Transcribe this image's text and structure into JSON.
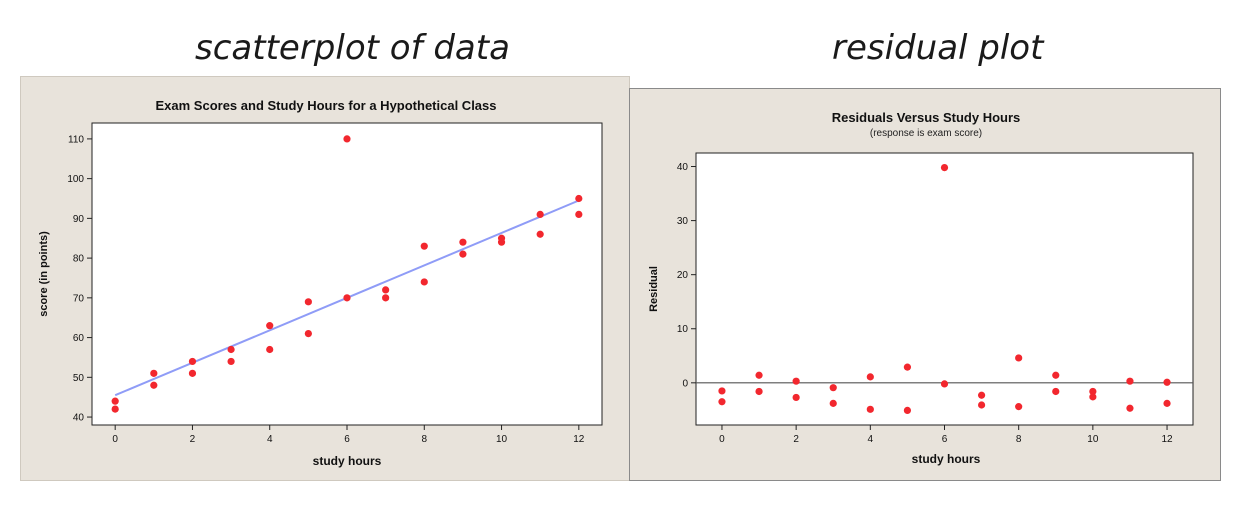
{
  "headings": {
    "left": "scatterplot of data",
    "right": "residual plot"
  },
  "colors": {
    "point": "#f2272e",
    "fit_line": "#8f9cf7",
    "panel_bg": "#e8e3db",
    "plot_bg": "#ffffff"
  },
  "chart_data": [
    {
      "type": "scatter",
      "title": "Exam Scores and Study Hours for a Hypothetical Class",
      "subtitle": "",
      "xlabel": "study hours",
      "ylabel": "score (in points)",
      "xlim": [
        -0.6,
        12.6
      ],
      "ylim": [
        38,
        114
      ],
      "xticks": [
        0,
        2,
        4,
        6,
        8,
        10,
        12
      ],
      "yticks": [
        40,
        50,
        60,
        70,
        80,
        90,
        100,
        110
      ],
      "grid": false,
      "points": [
        {
          "x": 0,
          "y": 44
        },
        {
          "x": 0,
          "y": 42
        },
        {
          "x": 1,
          "y": 51
        },
        {
          "x": 1,
          "y": 48
        },
        {
          "x": 2,
          "y": 54
        },
        {
          "x": 2,
          "y": 51
        },
        {
          "x": 3,
          "y": 57
        },
        {
          "x": 3,
          "y": 54
        },
        {
          "x": 4,
          "y": 63
        },
        {
          "x": 4,
          "y": 57
        },
        {
          "x": 5,
          "y": 69
        },
        {
          "x": 5,
          "y": 61
        },
        {
          "x": 6,
          "y": 110
        },
        {
          "x": 6,
          "y": 70
        },
        {
          "x": 7,
          "y": 72
        },
        {
          "x": 7,
          "y": 70
        },
        {
          "x": 8,
          "y": 83
        },
        {
          "x": 8,
          "y": 74
        },
        {
          "x": 9,
          "y": 84
        },
        {
          "x": 9,
          "y": 81
        },
        {
          "x": 10,
          "y": 85
        },
        {
          "x": 10,
          "y": 84
        },
        {
          "x": 11,
          "y": 91
        },
        {
          "x": 11,
          "y": 86
        },
        {
          "x": 12,
          "y": 95
        },
        {
          "x": 12,
          "y": 91
        }
      ],
      "fit_line": {
        "x": [
          0,
          12
        ],
        "y": [
          45.5,
          94.5
        ]
      }
    },
    {
      "type": "scatter",
      "title": "Residuals Versus Study Hours",
      "subtitle": "(response is exam score)",
      "xlabel": "study hours",
      "ylabel": "Residual",
      "xlim": [
        -0.7,
        12.7
      ],
      "ylim": [
        -7.8,
        42.5
      ],
      "xticks": [
        0,
        2,
        4,
        6,
        8,
        10,
        12
      ],
      "yticks": [
        0,
        10,
        20,
        30,
        40
      ],
      "grid": false,
      "reference_line_y": 0,
      "points": [
        {
          "x": 0,
          "y": -1.5
        },
        {
          "x": 0,
          "y": -3.5
        },
        {
          "x": 1,
          "y": 1.4
        },
        {
          "x": 1,
          "y": -1.6
        },
        {
          "x": 2,
          "y": 0.3
        },
        {
          "x": 2,
          "y": -2.7
        },
        {
          "x": 3,
          "y": -0.9
        },
        {
          "x": 3,
          "y": -3.8
        },
        {
          "x": 4,
          "y": 1.1
        },
        {
          "x": 4,
          "y": -4.9
        },
        {
          "x": 5,
          "y": 2.9
        },
        {
          "x": 5,
          "y": -5.1
        },
        {
          "x": 6,
          "y": 39.8
        },
        {
          "x": 6,
          "y": -0.2
        },
        {
          "x": 7,
          "y": -2.3
        },
        {
          "x": 7,
          "y": -4.1
        },
        {
          "x": 8,
          "y": 4.6
        },
        {
          "x": 8,
          "y": -4.4
        },
        {
          "x": 9,
          "y": 1.4
        },
        {
          "x": 9,
          "y": -1.6
        },
        {
          "x": 10,
          "y": -1.6
        },
        {
          "x": 10,
          "y": -2.6
        },
        {
          "x": 11,
          "y": 0.3
        },
        {
          "x": 11,
          "y": -4.7
        },
        {
          "x": 12,
          "y": 0.1
        },
        {
          "x": 12,
          "y": -3.8
        }
      ]
    }
  ]
}
